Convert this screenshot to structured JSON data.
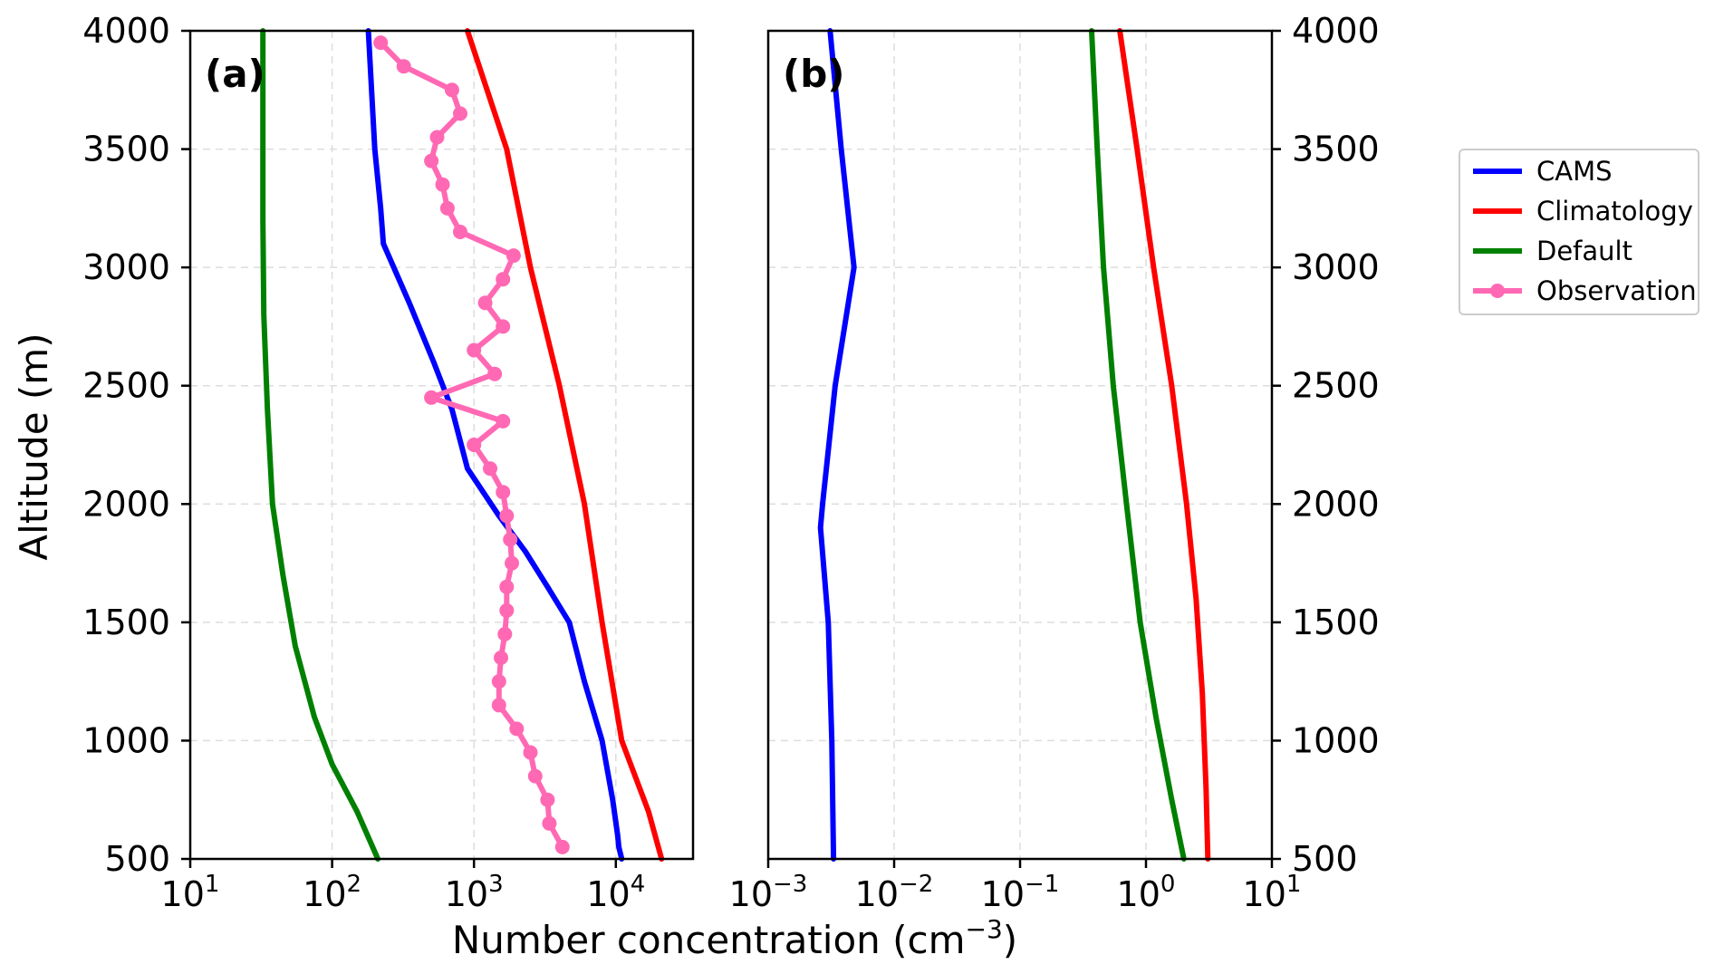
{
  "chart_data": [
    {
      "type": "line",
      "panel_label": "(a)",
      "x_scale": "log",
      "xlim": [
        10,
        35000
      ],
      "ylim": [
        500,
        4000
      ],
      "x_ticks": [
        10,
        100,
        1000,
        10000
      ],
      "x_tick_labels": [
        {
          "base": "10",
          "exp": "1"
        },
        {
          "base": "10",
          "exp": "2"
        },
        {
          "base": "10",
          "exp": "3"
        },
        {
          "base": "10",
          "exp": "4"
        }
      ],
      "y_ticks": [
        500,
        1000,
        1500,
        2000,
        2500,
        3000,
        3500,
        4000
      ],
      "y_tick_labels": [
        "500",
        "1000",
        "1500",
        "2000",
        "2500",
        "3000",
        "3500",
        "4000"
      ],
      "y_axis_side": "left",
      "grid": true,
      "series": [
        {
          "name": "CAMS",
          "color": "#0000ff",
          "markers": false,
          "points": [
            [
              11000,
              500
            ],
            [
              10500,
              550
            ],
            [
              10300,
              600
            ],
            [
              9500,
              750
            ],
            [
              8000,
              1000
            ],
            [
              6000,
              1250
            ],
            [
              4700,
              1500
            ],
            [
              3300,
              1650
            ],
            [
              2300,
              1800
            ],
            [
              1500,
              1950
            ],
            [
              900,
              2150
            ],
            [
              700,
              2400
            ],
            [
              520,
              2600
            ],
            [
              350,
              2850
            ],
            [
              230,
              3100
            ],
            [
              220,
              3250
            ],
            [
              200,
              3500
            ],
            [
              180,
              4000
            ]
          ]
        },
        {
          "name": "Climatology",
          "color": "#ff0000",
          "markers": false,
          "points": [
            [
              21000,
              500
            ],
            [
              17000,
              700
            ],
            [
              11000,
              1000
            ],
            [
              8000,
              1500
            ],
            [
              6000,
              2000
            ],
            [
              4000,
              2500
            ],
            [
              2500,
              3000
            ],
            [
              1700,
              3500
            ],
            [
              900,
              4000
            ]
          ]
        },
        {
          "name": "Default",
          "color": "#008000",
          "markers": false,
          "points": [
            [
              210,
              500
            ],
            [
              150,
              700
            ],
            [
              100,
              900
            ],
            [
              75,
              1100
            ],
            [
              55,
              1400
            ],
            [
              45,
              1700
            ],
            [
              38,
              2000
            ],
            [
              35,
              2400
            ],
            [
              33,
              2800
            ],
            [
              32.5,
              3200
            ],
            [
              32.5,
              4000
            ]
          ]
        },
        {
          "name": "Observation",
          "color": "#ff69b4",
          "markers": true,
          "points": [
            [
              4200,
              550
            ],
            [
              3400,
              650
            ],
            [
              3300,
              750
            ],
            [
              2700,
              850
            ],
            [
              2500,
              950
            ],
            [
              2000,
              1050
            ],
            [
              1500,
              1150
            ],
            [
              1500,
              1250
            ],
            [
              1550,
              1350
            ],
            [
              1650,
              1450
            ],
            [
              1700,
              1550
            ],
            [
              1700,
              1650
            ],
            [
              1850,
              1750
            ],
            [
              1800,
              1850
            ],
            [
              1700,
              1950
            ],
            [
              1600,
              2050
            ],
            [
              1300,
              2150
            ],
            [
              1000,
              2250
            ],
            [
              1600,
              2350
            ],
            [
              500,
              2450
            ],
            [
              1400,
              2550
            ],
            [
              1000,
              2650
            ],
            [
              1600,
              2750
            ],
            [
              1200,
              2850
            ],
            [
              1600,
              2950
            ],
            [
              1900,
              3050
            ],
            [
              800,
              3150
            ],
            [
              650,
              3250
            ],
            [
              600,
              3350
            ],
            [
              500,
              3450
            ],
            [
              550,
              3550
            ],
            [
              800,
              3650
            ],
            [
              700,
              3750
            ],
            [
              320,
              3850
            ],
            [
              220,
              3950
            ]
          ]
        }
      ]
    },
    {
      "type": "line",
      "panel_label": "(b)",
      "x_scale": "log",
      "xlim": [
        0.001,
        10
      ],
      "ylim": [
        500,
        4000
      ],
      "x_ticks": [
        0.001,
        0.01,
        0.1,
        1,
        10
      ],
      "x_tick_labels": [
        {
          "base": "10",
          "exp": "−3"
        },
        {
          "base": "10",
          "exp": "−2"
        },
        {
          "base": "10",
          "exp": "−1"
        },
        {
          "base": "10",
          "exp": "0"
        },
        {
          "base": "10",
          "exp": "1"
        }
      ],
      "y_ticks": [
        500,
        1000,
        1500,
        2000,
        2500,
        3000,
        3500,
        4000
      ],
      "y_tick_labels": [
        "500",
        "1000",
        "1500",
        "2000",
        "2500",
        "3000",
        "3500",
        "4000"
      ],
      "y_axis_side": "right",
      "grid": true,
      "series": [
        {
          "name": "CAMS",
          "color": "#0000ff",
          "markers": false,
          "points": [
            [
              0.0033,
              500
            ],
            [
              0.0032,
              1000
            ],
            [
              0.003,
              1500
            ],
            [
              0.0026,
              1900
            ],
            [
              0.0027,
              2000
            ],
            [
              0.0034,
              2500
            ],
            [
              0.0048,
              3000
            ],
            [
              0.0038,
              3500
            ],
            [
              0.0031,
              4000
            ]
          ]
        },
        {
          "name": "Climatology",
          "color": "#ff0000",
          "markers": false,
          "points": [
            [
              3.1,
              500
            ],
            [
              3.0,
              800
            ],
            [
              2.8,
              1200
            ],
            [
              2.5,
              1600
            ],
            [
              2.1,
              2000
            ],
            [
              1.6,
              2500
            ],
            [
              1.15,
              3000
            ],
            [
              0.85,
              3500
            ],
            [
              0.62,
              4000
            ]
          ]
        },
        {
          "name": "Default",
          "color": "#008000",
          "markers": false,
          "points": [
            [
              2.0,
              500
            ],
            [
              1.6,
              750
            ],
            [
              1.2,
              1100
            ],
            [
              0.9,
              1500
            ],
            [
              0.7,
              2000
            ],
            [
              0.55,
              2500
            ],
            [
              0.46,
              3000
            ],
            [
              0.41,
              3500
            ],
            [
              0.37,
              4000
            ]
          ]
        }
      ]
    }
  ],
  "shared": {
    "ylabel": "Altitude (m)",
    "xlabel_main": "Number concentration (cm",
    "xlabel_exp": "−3",
    "xlabel_close": ")"
  },
  "legend": {
    "placement": "right",
    "entries": [
      {
        "name": "CAMS",
        "color": "#0000ff",
        "marker": false
      },
      {
        "name": "Climatology",
        "color": "#ff0000",
        "marker": false
      },
      {
        "name": "Default",
        "color": "#008000",
        "marker": false
      },
      {
        "name": "Observation",
        "color": "#ff69b4",
        "marker": true
      }
    ]
  }
}
